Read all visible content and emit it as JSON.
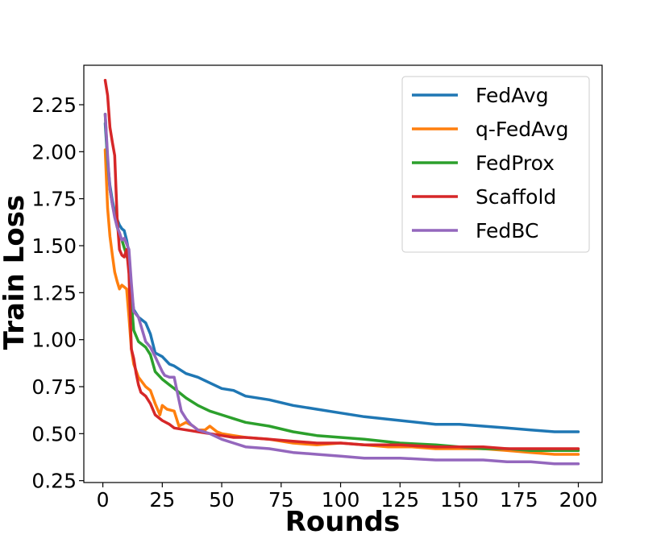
{
  "chart_data": {
    "type": "line",
    "title": "",
    "xlabel": "Rounds",
    "ylabel": "Train Loss",
    "xlim": [
      -8,
      210
    ],
    "ylim": [
      0.24,
      2.46
    ],
    "xticks": [
      0,
      25,
      50,
      75,
      100,
      125,
      150,
      175,
      200
    ],
    "xtick_labels": [
      "0",
      "25",
      "50",
      "75",
      "100",
      "125",
      "150",
      "175",
      "200"
    ],
    "yticks": [
      0.25,
      0.5,
      0.75,
      1.0,
      1.25,
      1.5,
      1.75,
      2.0,
      2.25
    ],
    "ytick_labels": [
      "0.25",
      "0.50",
      "0.75",
      "1.00",
      "1.25",
      "1.50",
      "1.75",
      "2.00",
      "2.25"
    ],
    "grid": false,
    "legend_position": "top-right",
    "colors": [
      "#1f77b4",
      "#ff7f0e",
      "#2ca02c",
      "#d62728",
      "#9467bd"
    ],
    "series": [
      {
        "name": "FedAvg",
        "x": [
          1,
          2,
          3,
          4,
          5,
          6,
          7,
          8,
          9,
          10,
          11,
          12,
          13,
          15,
          18,
          20,
          22,
          25,
          28,
          30,
          35,
          40,
          45,
          50,
          55,
          60,
          70,
          80,
          90,
          100,
          110,
          125,
          140,
          150,
          160,
          170,
          180,
          190,
          200
        ],
        "y": [
          2.15,
          1.95,
          1.82,
          1.74,
          1.68,
          1.64,
          1.61,
          1.59,
          1.58,
          1.53,
          1.46,
          1.25,
          1.16,
          1.12,
          1.09,
          1.03,
          0.93,
          0.91,
          0.87,
          0.86,
          0.82,
          0.8,
          0.77,
          0.74,
          0.73,
          0.7,
          0.68,
          0.65,
          0.63,
          0.61,
          0.59,
          0.57,
          0.55,
          0.55,
          0.54,
          0.53,
          0.52,
          0.51,
          0.51
        ]
      },
      {
        "name": "q-FedAvg",
        "x": [
          1,
          2,
          3,
          4,
          5,
          6,
          7,
          8,
          9,
          10,
          11,
          12,
          13,
          15,
          18,
          20,
          22,
          24,
          25,
          27,
          30,
          32,
          35,
          38,
          40,
          43,
          45,
          48,
          50,
          55,
          60,
          70,
          80,
          90,
          100,
          110,
          120,
          130,
          140,
          150,
          160,
          170,
          180,
          190,
          200
        ],
        "y": [
          2.01,
          1.7,
          1.55,
          1.45,
          1.36,
          1.31,
          1.27,
          1.29,
          1.28,
          1.27,
          1.12,
          0.95,
          0.87,
          0.8,
          0.75,
          0.73,
          0.66,
          0.6,
          0.65,
          0.63,
          0.62,
          0.54,
          0.56,
          0.54,
          0.52,
          0.52,
          0.54,
          0.51,
          0.5,
          0.49,
          0.48,
          0.47,
          0.45,
          0.44,
          0.45,
          0.44,
          0.43,
          0.43,
          0.42,
          0.42,
          0.42,
          0.41,
          0.4,
          0.39,
          0.39
        ]
      },
      {
        "name": "FedProx",
        "x": [
          1,
          2,
          3,
          4,
          5,
          6,
          7,
          8,
          9,
          10,
          11,
          12,
          13,
          15,
          18,
          20,
          22,
          25,
          28,
          30,
          35,
          40,
          45,
          50,
          55,
          60,
          70,
          80,
          90,
          100,
          110,
          125,
          140,
          150,
          160,
          170,
          180,
          190,
          200
        ],
        "y": [
          2.2,
          1.95,
          1.8,
          1.72,
          1.66,
          1.6,
          1.56,
          1.53,
          1.49,
          1.45,
          1.4,
          1.2,
          1.05,
          0.99,
          0.96,
          0.92,
          0.83,
          0.79,
          0.76,
          0.74,
          0.69,
          0.65,
          0.62,
          0.6,
          0.58,
          0.56,
          0.54,
          0.51,
          0.49,
          0.48,
          0.47,
          0.45,
          0.44,
          0.43,
          0.42,
          0.42,
          0.41,
          0.41,
          0.41
        ]
      },
      {
        "name": "Scaffold",
        "x": [
          1,
          2,
          3,
          4,
          5,
          6,
          7,
          8,
          9,
          10,
          11,
          12,
          13,
          14,
          15,
          16,
          18,
          20,
          22,
          25,
          28,
          30,
          35,
          40,
          45,
          50,
          55,
          60,
          70,
          80,
          90,
          100,
          110,
          125,
          140,
          150,
          160,
          170,
          180,
          190,
          200
        ],
        "y": [
          2.38,
          2.3,
          2.13,
          2.05,
          1.98,
          1.65,
          1.48,
          1.45,
          1.44,
          1.48,
          1.35,
          0.95,
          0.9,
          0.82,
          0.76,
          0.72,
          0.7,
          0.66,
          0.6,
          0.57,
          0.55,
          0.53,
          0.52,
          0.51,
          0.5,
          0.49,
          0.48,
          0.48,
          0.47,
          0.46,
          0.45,
          0.45,
          0.44,
          0.44,
          0.43,
          0.43,
          0.43,
          0.42,
          0.42,
          0.42,
          0.42
        ]
      },
      {
        "name": "FedBC",
        "x": [
          1,
          2,
          3,
          4,
          5,
          6,
          7,
          8,
          9,
          10,
          11,
          12,
          13,
          15,
          18,
          20,
          22,
          25,
          26,
          28,
          30,
          31,
          33,
          35,
          37,
          40,
          45,
          50,
          55,
          60,
          70,
          80,
          90,
          100,
          110,
          125,
          140,
          150,
          160,
          170,
          180,
          190,
          200
        ],
        "y": [
          2.2,
          1.98,
          1.8,
          1.72,
          1.65,
          1.6,
          1.57,
          1.53,
          1.54,
          1.51,
          1.48,
          1.3,
          1.15,
          1.12,
          0.99,
          0.96,
          0.91,
          0.83,
          0.81,
          0.8,
          0.8,
          0.74,
          0.62,
          0.58,
          0.55,
          0.52,
          0.5,
          0.47,
          0.45,
          0.43,
          0.42,
          0.4,
          0.39,
          0.38,
          0.37,
          0.37,
          0.36,
          0.36,
          0.36,
          0.35,
          0.35,
          0.34,
          0.34
        ]
      }
    ]
  }
}
